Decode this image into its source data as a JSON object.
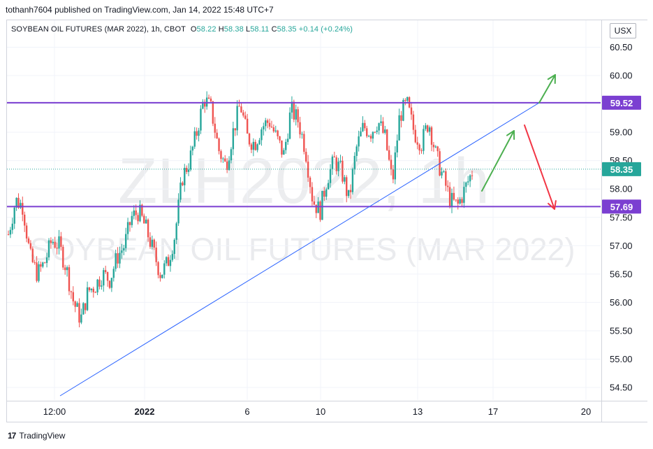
{
  "publisher_line": "tothanh7604 published on TradingView.com, Jan 14, 2022 15:48 UTC+7",
  "legend": {
    "symbol": "SOYBEAN OIL FUTURES (MAR 2022), 1h, CBOT",
    "open_label": "O",
    "open": "58.22",
    "high_label": "H",
    "high": "58.38",
    "low_label": "L",
    "low": "58.11",
    "close_label": "C",
    "close": "58.35",
    "change": "+0.14 (+0.24%)"
  },
  "currency": "USX",
  "watermark": {
    "ticker": "ZLH2022, 1h",
    "name": "SOYBEAN OIL FUTURES (MAR 2022)"
  },
  "footer": {
    "brand": "TradingView",
    "mark": "17"
  },
  "colors": {
    "up": "#26a69a",
    "down": "#ef5350",
    "level": "#7b3fd1",
    "trendline": "#2962ff",
    "arrow_up": "#4caf50",
    "arrow_down": "#f23645",
    "current": "#26a69a"
  },
  "chart_data": {
    "type": "candlestick",
    "y_axis": {
      "ticks": [
        "54.50",
        "55.00",
        "55.50",
        "56.00",
        "56.50",
        "57.00",
        "57.50",
        "58.00",
        "58.50",
        "59.00",
        "59.50",
        "60.00",
        "60.50"
      ],
      "range": [
        54.2,
        60.9
      ]
    },
    "x_axis": {
      "ticks": [
        "12:00",
        "2022",
        "6",
        "10",
        "13",
        "17",
        "20"
      ]
    },
    "price_labels": [
      {
        "id": "resistance",
        "value": "59.52"
      },
      {
        "id": "current",
        "value": "58.35"
      },
      {
        "id": "support",
        "value": "57.69"
      }
    ],
    "horizontal_levels": [
      59.52,
      57.69
    ],
    "current_price": 58.35,
    "trendline": {
      "from": {
        "x": "before 12:00",
        "y": 54.3
      },
      "to": {
        "x": "between 17 and 20",
        "y": 59.52
      }
    },
    "arrows": [
      {
        "direction": "up",
        "from": 57.9,
        "to": 59.0
      },
      {
        "direction": "up",
        "from": 59.52,
        "to": 60.0
      },
      {
        "direction": "down",
        "from": 59.1,
        "to": 57.6
      }
    ],
    "price_path": [
      57.2,
      57.8,
      57.7,
      56.8,
      56.5,
      56.7,
      57.1,
      57.0,
      56.6,
      56.0,
      55.7,
      56.2,
      56.3,
      56.5,
      56.4,
      56.8,
      57.0,
      57.5,
      57.6,
      57.3,
      56.9,
      56.5,
      56.7,
      57.2,
      58.2,
      58.5,
      59.0,
      59.6,
      59.4,
      58.7,
      58.4,
      59.0,
      59.5,
      58.9,
      58.8,
      59.1,
      59.2,
      58.9,
      58.6,
      59.4,
      59.2,
      58.7,
      57.8,
      57.6,
      58.2,
      58.5,
      58.3,
      57.8,
      58.7,
      59.1,
      59.0,
      59.2,
      58.9,
      58.1,
      59.3,
      59.5,
      59.0,
      58.8,
      59.2,
      58.6,
      58.2,
      57.8,
      57.7,
      58.0,
      58.3
    ]
  }
}
